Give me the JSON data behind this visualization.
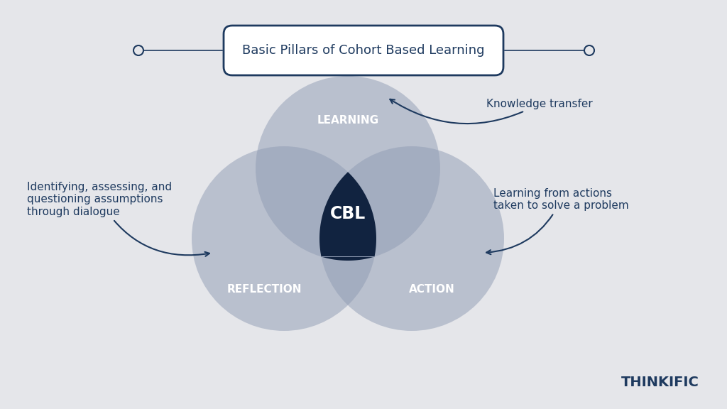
{
  "background_color": "#e5e6ea",
  "title_box_text": "Basic Pillars of Cohort Based Learning",
  "title_box_color": "#ffffff",
  "title_box_border": "#1e3a5f",
  "title_text_color": "#1e3a5f",
  "title_fontsize": 13,
  "circle_color": "#8f9bb3",
  "circle_alpha": 0.5,
  "center_color": "#0d1f3c",
  "label_learning": "LEARNING",
  "label_reflection": "REFLECTION",
  "label_action": "ACTION",
  "label_cbl": "CBL",
  "label_color_circle": "#ffffff",
  "label_cbl_color": "#ffffff",
  "annotation_knowledge": "Knowledge transfer",
  "annotation_identifying": "Identifying, assessing, and\nquestioning assumptions\nthrough dialogue",
  "annotation_learning_actions": "Learning from actions\ntaken to solve a problem",
  "annotation_color": "#1e3a5f",
  "annotation_fontsize": 11,
  "thinkific_text": "THINKIFIC",
  "thinkific_color": "#1e3a5f",
  "thinkific_fontsize": 14
}
